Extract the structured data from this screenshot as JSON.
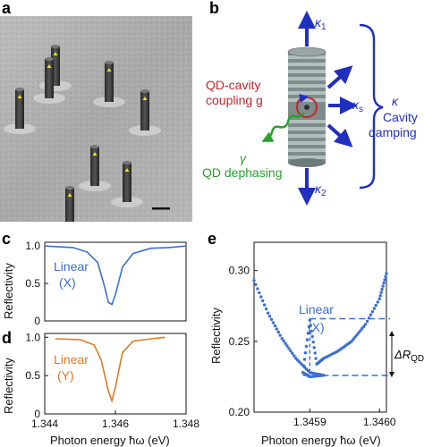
{
  "panels": {
    "a": {
      "letter": "a"
    },
    "b": {
      "letter": "b",
      "kappa1": "κ1",
      "kappa1_base": "κ",
      "kappa1_sub": "1",
      "kappa2_base": "κ",
      "kappa2_sub": "2",
      "kappas_base": "κ",
      "kappas_sub": "s",
      "qd_cavity_line1": "QD-cavity",
      "qd_cavity_line2": "coupling g",
      "gamma": "γ",
      "qd_dephasing": "QD dephasing",
      "kappa_total": "κ",
      "cavity_line1": "Cavity",
      "cavity_line2": "damping",
      "colors": {
        "red": "#c0282d",
        "green": "#2ca02c",
        "blue": "#1f2fbf"
      }
    },
    "c": {
      "letter": "c",
      "label_line1": "Linear",
      "label_line2": "(X)",
      "color": "#3b6fd4"
    },
    "d": {
      "letter": "d",
      "label_line1": "Linear",
      "label_line2": "(Y)",
      "color": "#e07b22"
    },
    "e": {
      "letter": "e",
      "label_line1": "Linear",
      "label_line2": "(X)",
      "delta_label": "ΔR",
      "delta_sub": "QD",
      "color": "#3b6fd4"
    }
  },
  "chart_data": [
    {
      "type": "line",
      "panel": "c",
      "ylabel": "Reflectivity",
      "xlim": [
        1.344,
        1.348
      ],
      "ylim": [
        0,
        1.05
      ],
      "yticks": [
        "0",
        "0.5",
        "1.0"
      ],
      "x": [
        1.344,
        1.3448,
        1.3452,
        1.3455,
        1.3457,
        1.3458,
        1.3459,
        1.346,
        1.3462,
        1.3465,
        1.347,
        1.3475,
        1.348
      ],
      "y": [
        1.0,
        0.98,
        0.92,
        0.78,
        0.45,
        0.25,
        0.22,
        0.35,
        0.72,
        0.9,
        0.97,
        0.98,
        1.0
      ]
    },
    {
      "type": "line",
      "panel": "d",
      "ylabel": "Reflectivity",
      "xlabel": "Photon energy ħω (eV)",
      "xlim": [
        1.344,
        1.348
      ],
      "ylim": [
        0,
        1.05
      ],
      "yticks": [
        "0",
        "0.5",
        "1.0"
      ],
      "xticks": [
        "1.344",
        "1.346",
        "1.348"
      ],
      "x": [
        1.3443,
        1.345,
        1.3454,
        1.3456,
        1.3458,
        1.3459,
        1.346,
        1.3462,
        1.3465,
        1.347,
        1.3474
      ],
      "y": [
        0.98,
        0.97,
        0.9,
        0.7,
        0.3,
        0.17,
        0.35,
        0.8,
        0.95,
        0.98,
        1.0
      ]
    },
    {
      "type": "scatter",
      "panel": "e",
      "ylabel": "Reflectivity",
      "xlabel": "Photon energy ħω (eV)",
      "xlim": [
        1.34582,
        1.34601
      ],
      "ylim": [
        0.2,
        0.32
      ],
      "yticks": [
        "0.20",
        "0.25",
        "0.30"
      ],
      "xticks": [
        "1.3459",
        "1.3460"
      ],
      "x": [
        1.34582,
        1.34584,
        1.34586,
        1.34588,
        1.3459,
        1.34592,
        1.3459,
        1.34589,
        1.3459,
        1.34591,
        1.34592,
        1.34594,
        1.34596,
        1.34598,
        1.346,
        1.34601
      ],
      "y": [
        0.293,
        0.27,
        0.252,
        0.238,
        0.228,
        0.226,
        0.225,
        0.228,
        0.265,
        0.234,
        0.238,
        0.243,
        0.25,
        0.262,
        0.28,
        0.298
      ],
      "dashed_levels": [
        0.266,
        0.226
      ]
    }
  ]
}
